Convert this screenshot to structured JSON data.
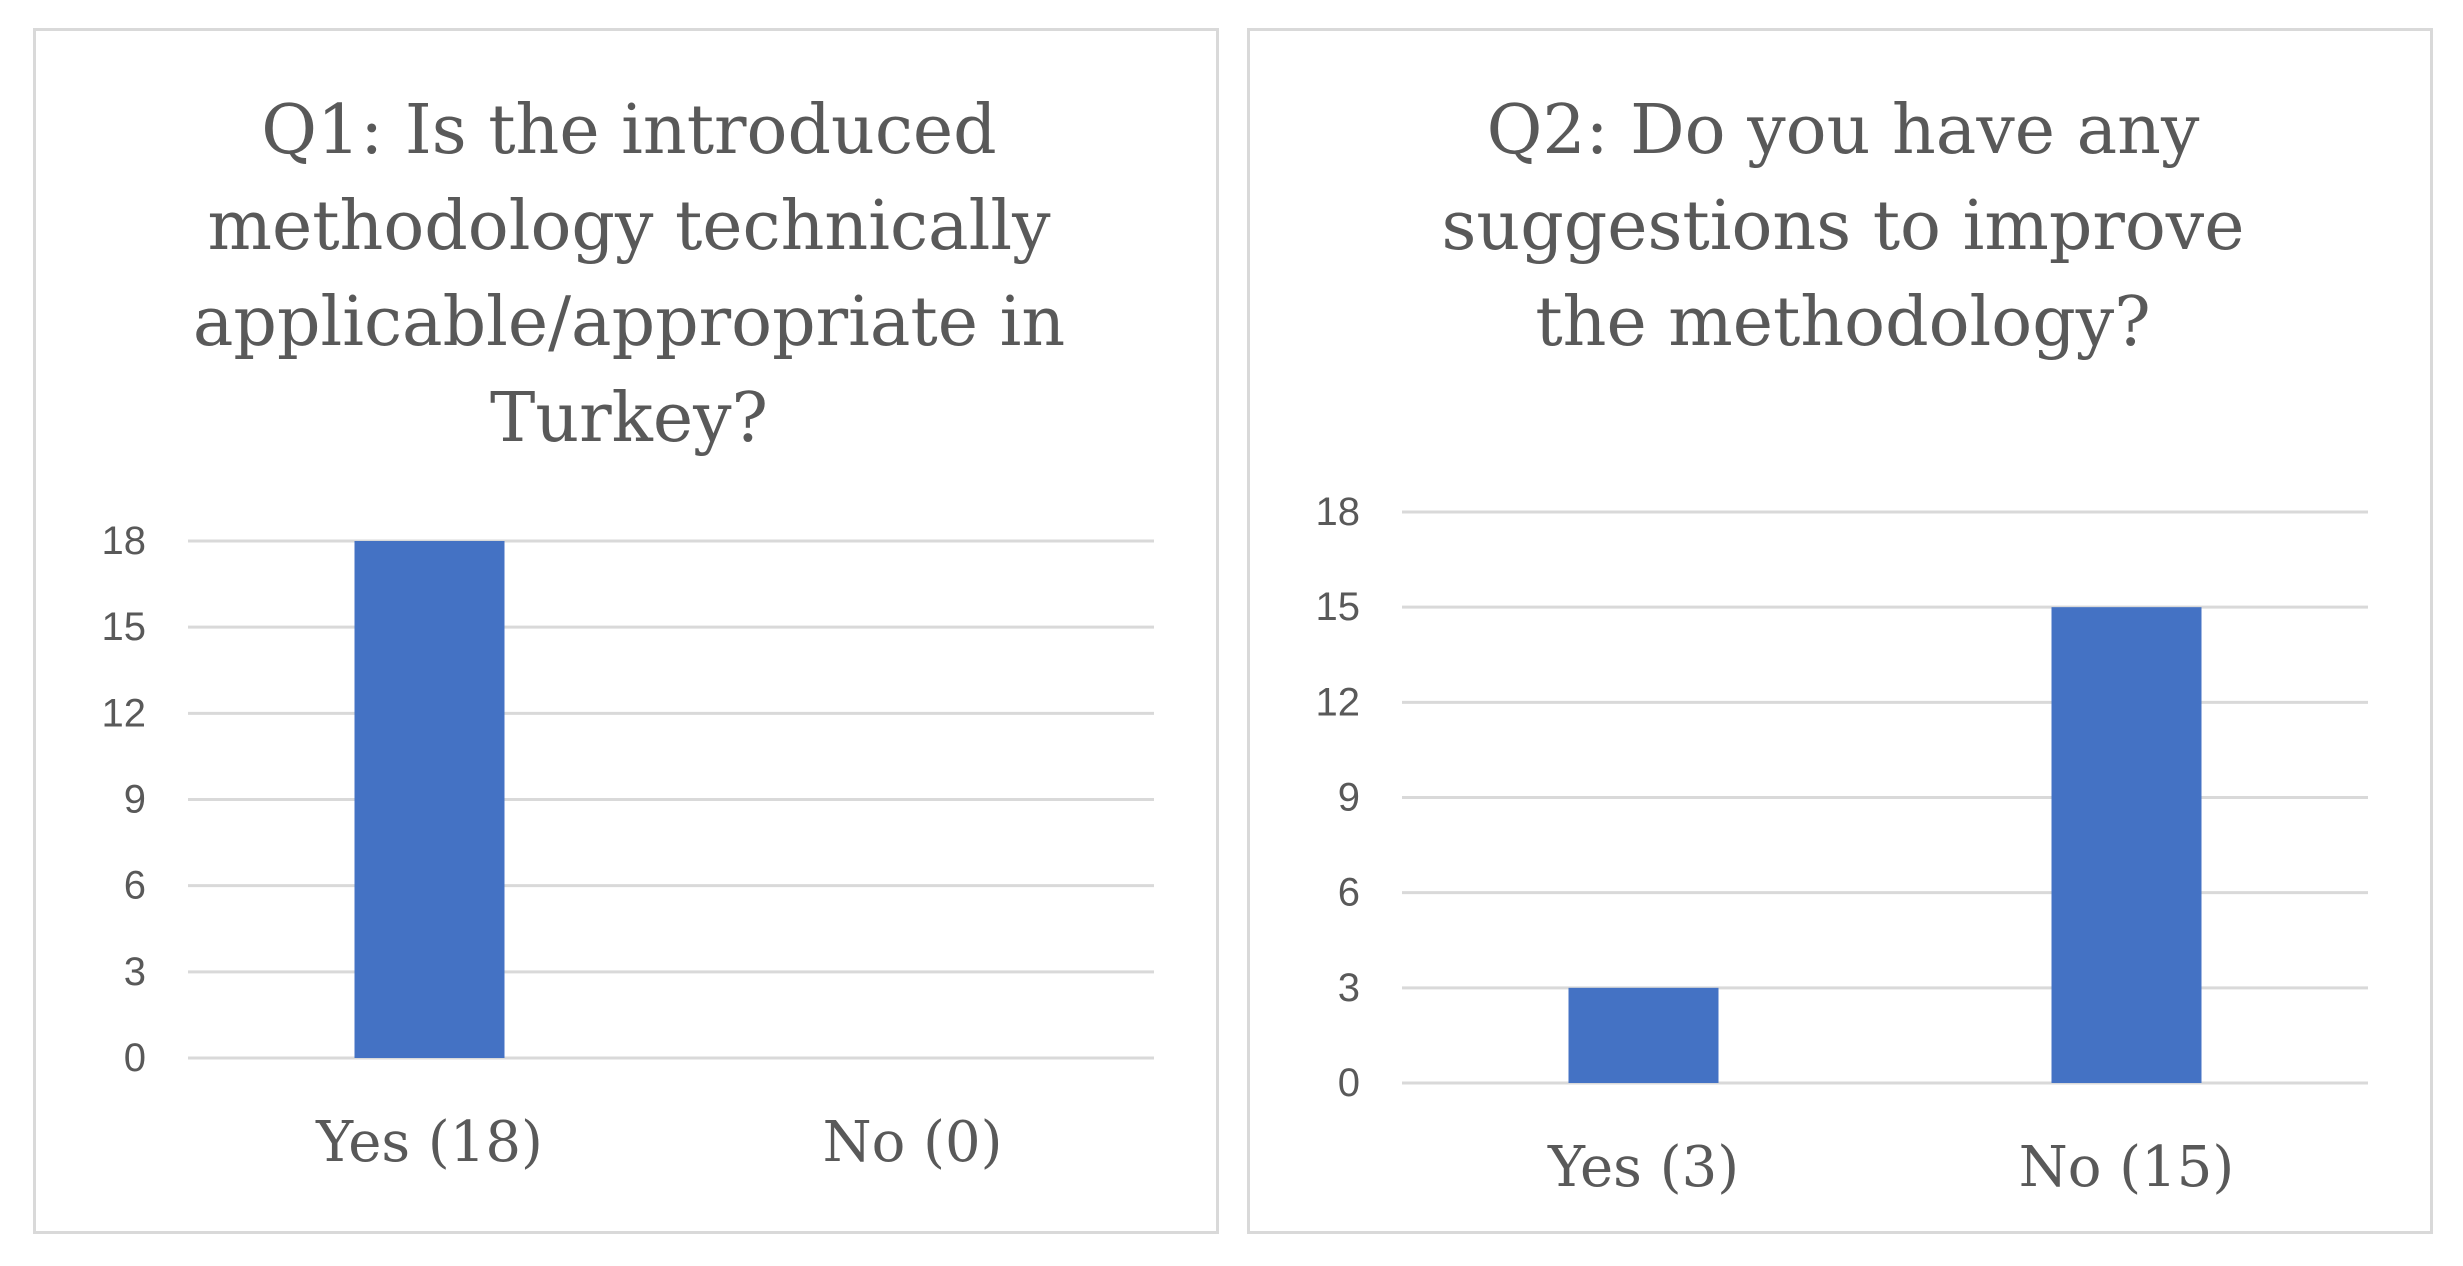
{
  "colors": {
    "bar": "#4472c4",
    "grid": "#d9d9d9",
    "text": "#595959",
    "panel_border": "#d9d9d9"
  },
  "chart_data": [
    {
      "type": "bar",
      "title": "Q1: Is the introduced methodology technically applicable/appropriate in Turkey?",
      "categories": [
        "Yes (18)",
        "No (0)"
      ],
      "values": [
        18,
        0
      ],
      "yticks": [
        0,
        3,
        6,
        9,
        12,
        15,
        18
      ],
      "ylim": [
        0,
        18
      ],
      "xlabel": "",
      "ylabel": "",
      "grid": true,
      "legend": "none"
    },
    {
      "type": "bar",
      "title": "Q2: Do you have any suggestions to improve the methodology?",
      "categories": [
        "Yes (3)",
        "No (15)"
      ],
      "values": [
        3,
        15
      ],
      "yticks": [
        0,
        3,
        6,
        9,
        12,
        15,
        18
      ],
      "ylim": [
        0,
        18
      ],
      "xlabel": "",
      "ylabel": "",
      "grid": true,
      "legend": "none"
    }
  ]
}
